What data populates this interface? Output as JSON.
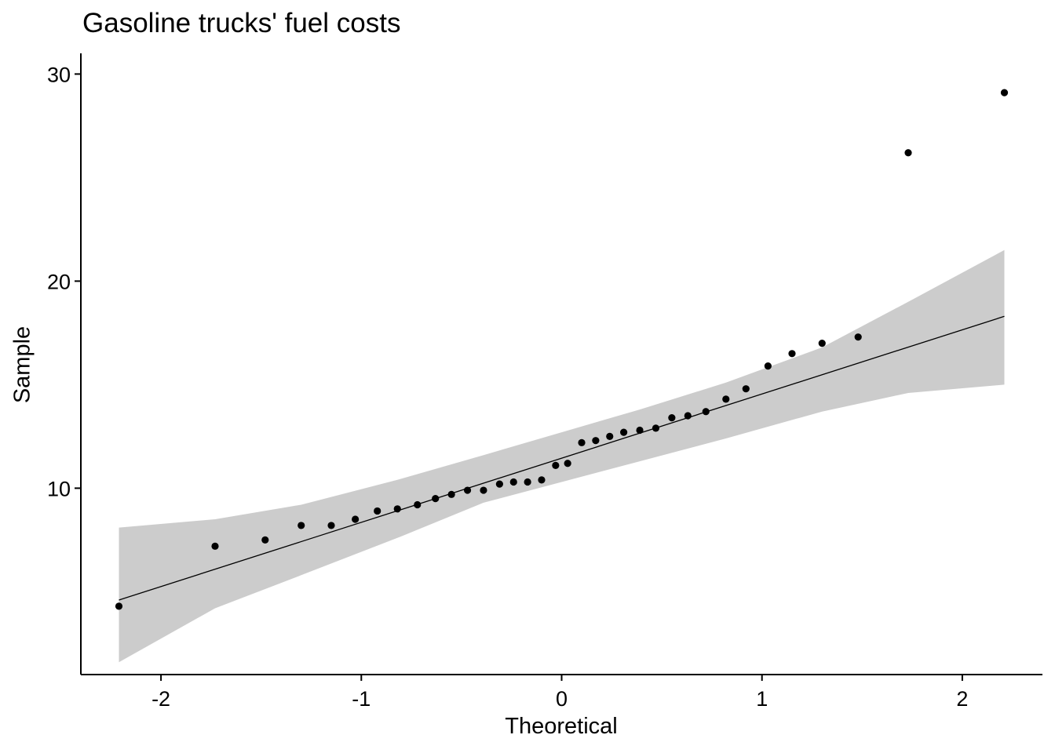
{
  "chart_data": {
    "type": "scatter",
    "title": "Gasoline trucks' fuel costs",
    "xlabel": "Theoretical",
    "ylabel": "Sample",
    "xlim": [
      -2.4,
      2.4
    ],
    "ylim": [
      1,
      31
    ],
    "x_ticks": [
      -2,
      -1,
      0,
      1,
      2
    ],
    "x_tick_labels": [
      "-2",
      "-1",
      "0",
      "1",
      "2"
    ],
    "y_ticks": [
      10,
      20,
      30
    ],
    "y_tick_labels": [
      "10",
      "20",
      "30"
    ],
    "grid": false,
    "colors": {
      "points": "#000000",
      "line": "#000000",
      "band": "#cccccc"
    },
    "points": [
      [
        -2.21,
        4.3
      ],
      [
        -1.73,
        7.2
      ],
      [
        -1.48,
        7.5
      ],
      [
        -1.3,
        8.2
      ],
      [
        -1.15,
        8.2
      ],
      [
        -1.03,
        8.5
      ],
      [
        -0.92,
        8.9
      ],
      [
        -0.82,
        9.0
      ],
      [
        -0.72,
        9.2
      ],
      [
        -0.63,
        9.5
      ],
      [
        -0.55,
        9.7
      ],
      [
        -0.47,
        9.9
      ],
      [
        -0.39,
        9.9
      ],
      [
        -0.31,
        10.2
      ],
      [
        -0.24,
        10.3
      ],
      [
        -0.17,
        10.3
      ],
      [
        -0.1,
        10.4
      ],
      [
        -0.03,
        11.1
      ],
      [
        0.03,
        11.2
      ],
      [
        0.1,
        12.2
      ],
      [
        0.17,
        12.3
      ],
      [
        0.24,
        12.5
      ],
      [
        0.31,
        12.7
      ],
      [
        0.39,
        12.8
      ],
      [
        0.47,
        12.9
      ],
      [
        0.55,
        13.4
      ],
      [
        0.63,
        13.5
      ],
      [
        0.72,
        13.7
      ],
      [
        0.82,
        14.3
      ],
      [
        0.92,
        14.8
      ],
      [
        1.03,
        15.9
      ],
      [
        1.15,
        16.5
      ],
      [
        1.3,
        17.0
      ],
      [
        1.48,
        17.3
      ],
      [
        1.73,
        26.2
      ],
      [
        2.21,
        29.1
      ]
    ],
    "reference_line": {
      "x": [
        -2.21,
        2.21
      ],
      "y": [
        4.6,
        18.3
      ]
    },
    "confidence_band": {
      "x": [
        -2.21,
        -1.73,
        -1.3,
        -0.82,
        -0.39,
        0.0,
        0.39,
        0.82,
        1.3,
        1.73,
        2.21
      ],
      "lower": [
        1.6,
        4.2,
        5.8,
        7.6,
        9.3,
        10.3,
        11.3,
        12.4,
        13.7,
        14.6,
        15.0
      ],
      "upper": [
        8.1,
        8.5,
        9.2,
        10.4,
        11.6,
        12.7,
        13.8,
        15.1,
        16.8,
        19.0,
        21.5
      ]
    }
  }
}
